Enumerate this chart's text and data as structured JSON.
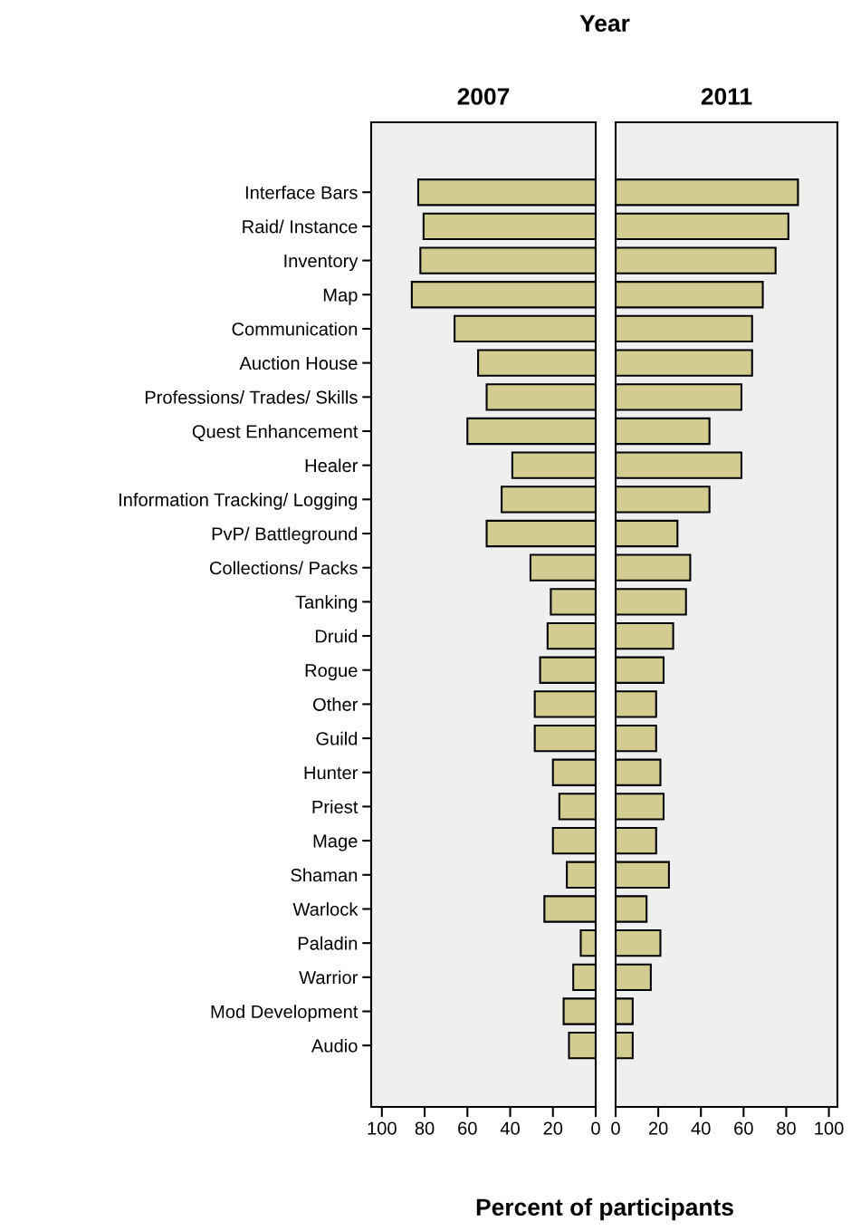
{
  "chart_data": [
    {
      "type": "bar",
      "orientation": "horizontal",
      "title": "2007",
      "xlabel": "Percent of participants",
      "annotations": [
        "Year"
      ],
      "categories": [
        "Interface Bars",
        "Raid/ Instance",
        "Inventory",
        "Map",
        "Communication",
        "Auction House",
        "Professions/ Trades/ Skills",
        "Quest Enhancement",
        "Healer",
        "Information Tracking/ Logging",
        "PvP/ Battleground",
        "Collections/ Packs",
        "Tanking",
        "Druid",
        "Rogue",
        "Other",
        "Guild",
        "Hunter",
        "Priest",
        "Mage",
        "Shaman",
        "Warlock",
        "Paladin",
        "Warrior",
        "Mod Development",
        "Audio"
      ],
      "values": [
        83,
        80.5,
        82,
        86,
        66,
        55,
        51,
        60,
        39,
        44,
        51,
        30.5,
        21,
        22.5,
        26,
        28.5,
        28.5,
        20,
        17,
        20,
        13.5,
        24,
        7,
        10.5,
        15,
        12.5
      ],
      "color": "#d3cc91",
      "xlim": [
        105,
        0
      ],
      "xticks": [
        100,
        80,
        60,
        40,
        20,
        0
      ],
      "grid": false,
      "legend": false
    },
    {
      "type": "bar",
      "orientation": "horizontal",
      "title": "2011",
      "tick_labels": "x",
      "categories": [
        null,
        null,
        null,
        null,
        null,
        null,
        null,
        null,
        null,
        null,
        null,
        null,
        null,
        null,
        null,
        null,
        null,
        null,
        null,
        null,
        null,
        null,
        null,
        null,
        null,
        null
      ],
      "values": [
        85.5,
        81,
        75,
        69,
        64,
        64,
        59,
        44,
        59,
        44,
        29,
        35,
        33,
        27,
        22.5,
        19,
        19,
        21,
        22.5,
        19,
        25,
        14.5,
        21,
        16.5,
        8,
        8
      ],
      "color": "#d3cc91",
      "xlim": [
        0,
        104
      ],
      "xticks": [
        0,
        20,
        40,
        60,
        80,
        100
      ],
      "grid": false,
      "legend": false
    }
  ]
}
